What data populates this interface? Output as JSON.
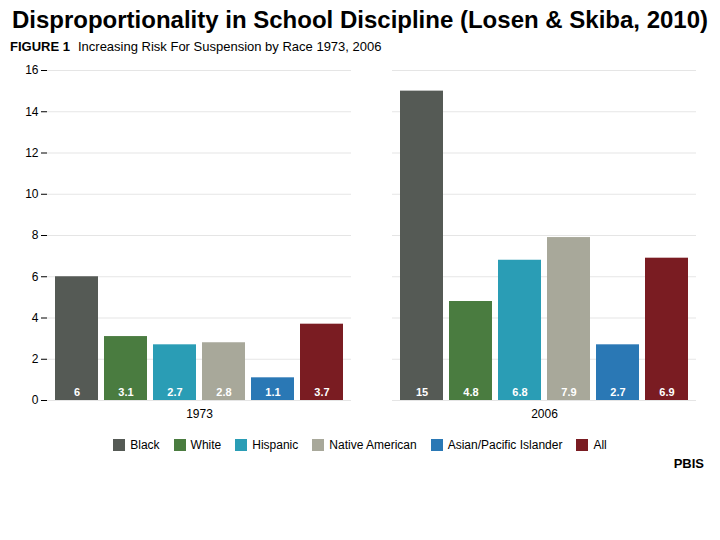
{
  "chart_data": {
    "type": "bar",
    "title": "Disproportionality in School Discipline (Losen & Skiba, 2010)",
    "subtitle": "Increasing Risk For Suspension by Race 1973, 2006",
    "annotations": [
      "FIGURE 1",
      "PBIS"
    ],
    "categories": [
      "1973",
      "2006"
    ],
    "series": [
      {
        "name": "Black",
        "color": "#555a55",
        "values": [
          6.0,
          15.0
        ]
      },
      {
        "name": "White",
        "color": "#4a7c40",
        "values": [
          3.1,
          4.8
        ]
      },
      {
        "name": "Hispanic",
        "color": "#2a9db5",
        "values": [
          2.7,
          6.8
        ]
      },
      {
        "name": "Native American",
        "color": "#a8a89a",
        "values": [
          2.8,
          7.9
        ]
      },
      {
        "name": "Asian/Pacific Islander",
        "color": "#2a78b5",
        "values": [
          1.1,
          2.7
        ]
      },
      {
        "name": "All",
        "color": "#7a1c22",
        "values": [
          3.7,
          6.9
        ]
      }
    ],
    "ylim": [
      0,
      16
    ],
    "yticks": [
      0,
      2,
      4,
      6,
      8,
      10,
      12,
      14,
      16
    ],
    "grid": true,
    "legend": "bottom",
    "data_labels": true
  }
}
